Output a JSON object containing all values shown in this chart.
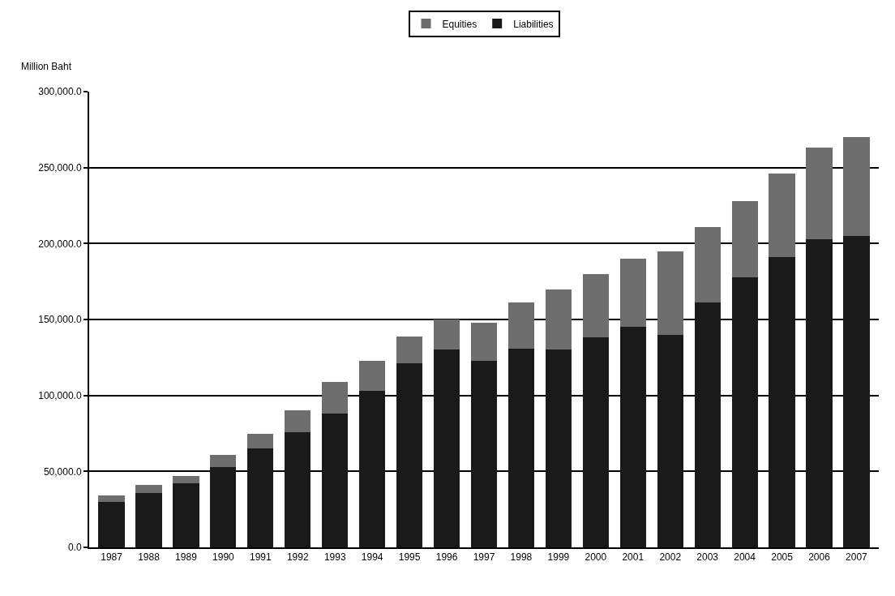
{
  "chart_data": {
    "type": "bar",
    "stacked": true,
    "ylabel": "Million Baht",
    "categories": [
      "1987",
      "1988",
      "1989",
      "1990",
      "1991",
      "1992",
      "1993",
      "1994",
      "1995",
      "1996",
      "1997",
      "1998",
      "1999",
      "2000",
      "2001",
      "2002",
      "2003",
      "2004",
      "2005",
      "2006",
      "2007"
    ],
    "series": [
      {
        "name": "Liabilities",
        "color": "#1a1a1a",
        "values": [
          30000,
          36000,
          42000,
          53000,
          65000,
          76000,
          88000,
          103000,
          121000,
          130000,
          123000,
          131000,
          130000,
          138000,
          145000,
          140000,
          161000,
          178000,
          191000,
          203000,
          205000
        ]
      },
      {
        "name": "Equities",
        "color": "#6e6e6e",
        "values": [
          4000,
          5000,
          5000,
          8000,
          10000,
          14000,
          21000,
          20000,
          18000,
          20000,
          25000,
          30000,
          40000,
          42000,
          45000,
          55000,
          50000,
          50000,
          55000,
          60000,
          65000
        ]
      }
    ],
    "ylim": [
      0,
      300000
    ],
    "yticks": [
      {
        "value": 0,
        "label": "0.0"
      },
      {
        "value": 50000,
        "label": "50,000.0"
      },
      {
        "value": 100000,
        "label": "100,000.0"
      },
      {
        "value": 150000,
        "label": "150,000.0"
      },
      {
        "value": 200000,
        "label": "200,000.0"
      },
      {
        "value": 250000,
        "label": "250,000.0"
      },
      {
        "value": 300000,
        "label": "300,000.0"
      }
    ],
    "grid": "y",
    "legend": "top"
  }
}
